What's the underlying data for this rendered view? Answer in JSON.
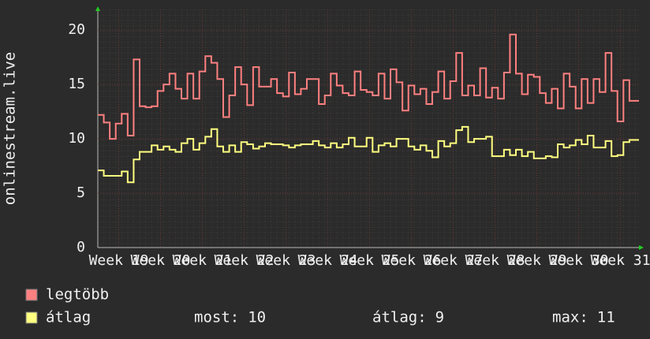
{
  "chart_data": {
    "type": "line",
    "y_label": "onlinestream.live",
    "x": [
      0,
      1,
      2,
      3,
      4,
      5,
      6,
      7,
      8,
      9,
      10,
      11,
      12,
      13,
      14,
      15,
      16,
      17,
      18,
      19,
      20,
      21,
      22,
      23,
      24,
      25,
      26,
      27,
      28,
      29,
      30,
      31,
      32,
      33,
      34,
      35,
      36,
      37,
      38,
      39,
      40,
      41,
      42,
      43,
      44,
      45,
      46,
      47,
      48,
      49,
      50,
      51,
      52,
      53,
      54,
      55,
      56,
      57,
      58,
      59,
      60,
      61,
      62,
      63,
      64,
      65,
      66,
      67,
      68,
      69,
      70,
      71,
      72,
      73,
      74,
      75,
      76,
      77,
      78,
      79,
      80,
      81,
      82,
      83,
      84,
      85,
      86,
      87,
      88,
      89
    ],
    "xlim": [
      0,
      90.6
    ],
    "xticks": [
      {
        "value": 3.5,
        "label": "Week 19"
      },
      {
        "value": 10.5,
        "label": "Week 20"
      },
      {
        "value": 17.5,
        "label": "Week 21"
      },
      {
        "value": 24.5,
        "label": "Week 22"
      },
      {
        "value": 31.5,
        "label": "Week 23"
      },
      {
        "value": 38.5,
        "label": "Week 24"
      },
      {
        "value": 45.5,
        "label": "Week 25"
      },
      {
        "value": 52.5,
        "label": "Week 26"
      },
      {
        "value": 59.5,
        "label": "Week 27"
      },
      {
        "value": 66.5,
        "label": "Week 28"
      },
      {
        "value": 73.5,
        "label": "Week 29"
      },
      {
        "value": 80.5,
        "label": "Week 30"
      },
      {
        "value": 87.5,
        "label": "Week 31"
      }
    ],
    "ylim": [
      0,
      21.9
    ],
    "yticks": [
      0,
      5,
      10,
      15,
      20
    ],
    "grid": true,
    "series": [
      {
        "name": "legtöbb",
        "color": "#ff8080",
        "values": [
          12.2,
          11.5,
          10,
          11.4,
          12.3,
          10.3,
          17.3,
          13,
          12.9,
          13,
          14.4,
          15,
          16,
          14.6,
          13.7,
          16,
          13.7,
          16.2,
          17.6,
          17,
          15.5,
          12,
          14,
          16.6,
          15,
          13.1,
          16.6,
          14.8,
          14.8,
          15.5,
          14.2,
          13.9,
          16.1,
          14.1,
          14.6,
          15.5,
          15.5,
          13.2,
          14,
          16,
          14.9,
          14.2,
          14,
          16.2,
          14.5,
          14.3,
          14,
          16,
          13.7,
          16.4,
          15.2,
          12.6,
          14.9,
          14.1,
          14.6,
          13.2,
          14.3,
          16.2,
          13.7,
          15.3,
          17.9,
          14,
          14.9,
          14,
          16.5,
          13.8,
          14.7,
          13.7,
          16.1,
          19.6,
          16,
          14.1,
          15.9,
          15.7,
          14.2,
          13.3,
          14.6,
          12.8,
          16,
          14.8,
          12.8,
          15.5,
          13.3,
          15.5,
          14.3,
          17.9,
          14.4,
          11.6,
          15.4,
          13.5
        ]
      },
      {
        "name": "átlag",
        "color": "#ffff80",
        "values": [
          7.1,
          6.6,
          6.6,
          6.6,
          7,
          6,
          8.1,
          8.8,
          8.8,
          9.4,
          9,
          9.3,
          9,
          8.8,
          9.6,
          10,
          9,
          9.6,
          10.2,
          10.9,
          9.3,
          8.8,
          9.4,
          8.8,
          9.7,
          9.5,
          9.1,
          9.3,
          9.6,
          9.5,
          9.5,
          9.4,
          9.2,
          9.4,
          9.5,
          9.5,
          9.8,
          9.4,
          9.2,
          9.6,
          9.2,
          9.5,
          10.1,
          9.3,
          9.3,
          10.1,
          8.8,
          9.4,
          9.6,
          9.3,
          10,
          10,
          9.3,
          9,
          9.4,
          8.9,
          8.3,
          9.8,
          9.3,
          9.6,
          10.8,
          11.1,
          9.7,
          10,
          10,
          10.2,
          8.4,
          8.4,
          9,
          8.5,
          9,
          8.4,
          8.8,
          8.2,
          8.2,
          8.4,
          8.3,
          9.5,
          9.2,
          9.4,
          9.9,
          9.5,
          10.3,
          9.2,
          9.2,
          9.8,
          8.4,
          8.5,
          9.7,
          9.9
        ]
      }
    ],
    "stats": [
      {
        "label": "most:",
        "value": 10
      },
      {
        "label": "átlag:",
        "value": 9
      },
      {
        "label": "max:",
        "value": 11
      }
    ]
  }
}
